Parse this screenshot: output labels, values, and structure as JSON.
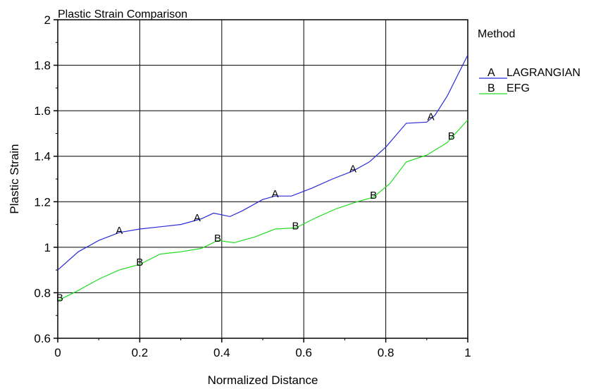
{
  "chart_data": {
    "type": "line",
    "title": "Plastic Strain Comparison",
    "xlabel": "Normalized Distance",
    "ylabel": "Plastic Strain",
    "xlim": [
      0,
      1
    ],
    "ylim": [
      0.6,
      2
    ],
    "xticks": [
      0,
      0.2,
      0.4,
      0.6,
      0.8,
      1
    ],
    "xtick_labels": [
      "0",
      "0.2",
      "0.4",
      "0.6",
      "0.8",
      "1"
    ],
    "yticks": [
      0.6,
      0.8,
      1,
      1.2,
      1.4,
      1.6,
      1.8,
      2
    ],
    "ytick_labels": [
      "0.6",
      "0.8",
      "1",
      "1.2",
      "1.4",
      "1.6",
      "1.8",
      "2"
    ],
    "grid": true,
    "legend": {
      "title": "Method",
      "position": "right"
    },
    "series": [
      {
        "name": "LAGRANGIAN",
        "marker": "A",
        "color": "#2b2bd6",
        "x": [
          0,
          0.05,
          0.1,
          0.15,
          0.2,
          0.25,
          0.3,
          0.35,
          0.38,
          0.42,
          0.45,
          0.5,
          0.53,
          0.57,
          0.62,
          0.67,
          0.72,
          0.76,
          0.8,
          0.85,
          0.9,
          0.92,
          0.95,
          1
        ],
        "y": [
          0.9,
          0.98,
          1.03,
          1.065,
          1.08,
          1.09,
          1.1,
          1.125,
          1.15,
          1.135,
          1.16,
          1.21,
          1.225,
          1.225,
          1.26,
          1.3,
          1.335,
          1.375,
          1.44,
          1.545,
          1.55,
          1.58,
          1.665,
          1.845
        ],
        "marker_positions": [
          0.15,
          0.34,
          0.53,
          0.72,
          0.91
        ]
      },
      {
        "name": "EFG",
        "marker": "B",
        "color": "#22dd22",
        "x": [
          0,
          0.05,
          0.1,
          0.15,
          0.2,
          0.25,
          0.3,
          0.35,
          0.39,
          0.43,
          0.48,
          0.53,
          0.58,
          0.63,
          0.68,
          0.73,
          0.77,
          0.81,
          0.85,
          0.9,
          0.95,
          1
        ],
        "y": [
          0.765,
          0.81,
          0.86,
          0.9,
          0.925,
          0.97,
          0.98,
          0.995,
          1.03,
          1.02,
          1.045,
          1.08,
          1.085,
          1.13,
          1.17,
          1.2,
          1.22,
          1.28,
          1.375,
          1.405,
          1.46,
          1.56
        ],
        "marker_positions": [
          0.005,
          0.2,
          0.39,
          0.58,
          0.77,
          0.96
        ]
      }
    ]
  }
}
